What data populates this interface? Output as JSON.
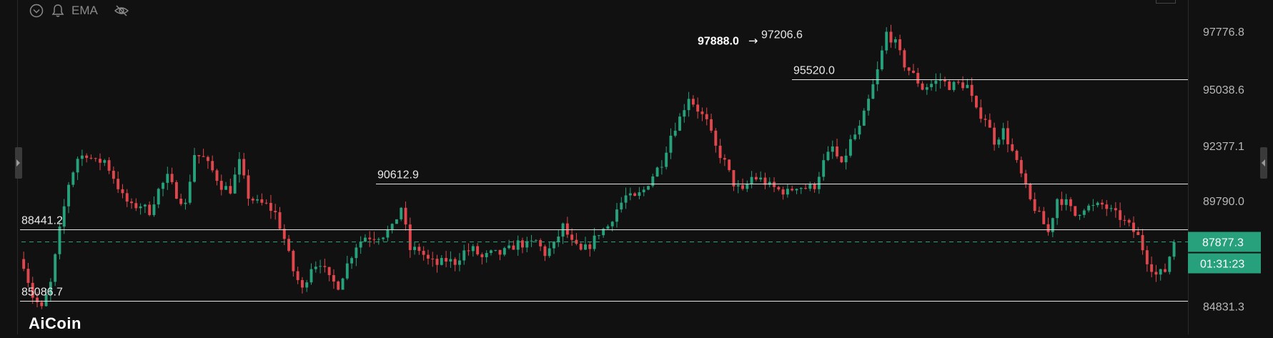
{
  "toolbar": {
    "indicator_label": "EMA",
    "icons": [
      "chevron-down-circle-icon",
      "bell-icon",
      "eye-off-icon"
    ]
  },
  "watermark": {
    "text": "AiCoin"
  },
  "colors": {
    "up": "#26a17b",
    "down": "#e0474c",
    "background": "#111111",
    "price_tag": "#26a17b",
    "level_line": "#e6e6e6"
  },
  "price_axis": {
    "ticks": [
      97776.8,
      95038.6,
      92377.1,
      89790.0,
      84831.3
    ],
    "tick_labels": [
      "97776.8",
      "95038.6",
      "92377.1",
      "89790.0",
      "84831.3"
    ]
  },
  "current_price": {
    "label": "87877.3",
    "countdown": "01:31:23"
  },
  "chart_data": {
    "type": "candlestick",
    "ylim": [
      83500,
      99250
    ],
    "levels": [
      {
        "label": "88441.2",
        "price": 88441.2
      },
      {
        "label": "85086.7",
        "price": 85086.7
      },
      {
        "label": "90612.9",
        "price": 90612.9
      },
      {
        "label": "95520.0",
        "price": 95520.0
      },
      {
        "label": "97206.6",
        "price": 97206.6
      }
    ],
    "peak_label": "97888.0",
    "current_price": 87877.3,
    "close_path": [
      [
        0,
        86800
      ],
      [
        2,
        85300
      ],
      [
        4,
        84700
      ],
      [
        6,
        85900
      ],
      [
        8,
        88400
      ],
      [
        10,
        90600
      ],
      [
        12,
        91800
      ],
      [
        14,
        92000
      ],
      [
        16,
        91600
      ],
      [
        18,
        91700
      ],
      [
        20,
        90900
      ],
      [
        22,
        90000
      ],
      [
        24,
        89500
      ],
      [
        26,
        89600
      ],
      [
        28,
        89300
      ],
      [
        30,
        90300
      ],
      [
        32,
        90900
      ],
      [
        34,
        90100
      ],
      [
        36,
        89600
      ],
      [
        38,
        92000
      ],
      [
        40,
        91800
      ],
      [
        42,
        91200
      ],
      [
        44,
        90500
      ],
      [
        46,
        90300
      ],
      [
        48,
        91600
      ],
      [
        50,
        90000
      ],
      [
        52,
        89700
      ],
      [
        54,
        89600
      ],
      [
        56,
        89200
      ],
      [
        58,
        88000
      ],
      [
        60,
        86500
      ],
      [
        62,
        85600
      ],
      [
        64,
        86700
      ],
      [
        66,
        86900
      ],
      [
        68,
        86100
      ],
      [
        70,
        85800
      ],
      [
        72,
        86800
      ],
      [
        74,
        87700
      ],
      [
        76,
        88100
      ],
      [
        78,
        88100
      ],
      [
        80,
        88200
      ],
      [
        82,
        88500
      ],
      [
        84,
        89500
      ],
      [
        86,
        87500
      ],
      [
        88,
        87500
      ],
      [
        90,
        87000
      ],
      [
        92,
        86800
      ],
      [
        94,
        87000
      ],
      [
        96,
        86900
      ],
      [
        98,
        87400
      ],
      [
        100,
        87500
      ],
      [
        102,
        87100
      ],
      [
        104,
        87300
      ],
      [
        106,
        87300
      ],
      [
        108,
        87500
      ],
      [
        110,
        87800
      ],
      [
        112,
        87700
      ],
      [
        114,
        87900
      ],
      [
        116,
        87300
      ],
      [
        118,
        87700
      ],
      [
        120,
        88600
      ],
      [
        122,
        87800
      ],
      [
        124,
        87400
      ],
      [
        126,
        87700
      ],
      [
        128,
        88300
      ],
      [
        130,
        88600
      ],
      [
        132,
        89400
      ],
      [
        134,
        90000
      ],
      [
        136,
        89900
      ],
      [
        138,
        90300
      ],
      [
        140,
        91000
      ],
      [
        142,
        91600
      ],
      [
        144,
        92900
      ],
      [
        146,
        93700
      ],
      [
        148,
        94700
      ],
      [
        150,
        94100
      ],
      [
        152,
        93500
      ],
      [
        154,
        92300
      ],
      [
        156,
        91600
      ],
      [
        158,
        90600
      ],
      [
        160,
        90200
      ],
      [
        162,
        90900
      ],
      [
        164,
        90800
      ],
      [
        166,
        90500
      ],
      [
        168,
        90300
      ],
      [
        170,
        90200
      ],
      [
        172,
        90500
      ],
      [
        174,
        90400
      ],
      [
        176,
        90500
      ],
      [
        178,
        91600
      ],
      [
        180,
        92300
      ],
      [
        182,
        91400
      ],
      [
        184,
        92600
      ],
      [
        186,
        93200
      ],
      [
        188,
        94500
      ],
      [
        190,
        95900
      ],
      [
        192,
        97700
      ],
      [
        194,
        97200
      ],
      [
        196,
        96200
      ],
      [
        198,
        95700
      ],
      [
        200,
        95100
      ],
      [
        202,
        95300
      ],
      [
        204,
        95500
      ],
      [
        206,
        95200
      ],
      [
        208,
        95300
      ],
      [
        210,
        95200
      ],
      [
        212,
        94000
      ],
      [
        214,
        93700
      ],
      [
        216,
        92600
      ],
      [
        218,
        93100
      ],
      [
        220,
        92100
      ],
      [
        222,
        91000
      ],
      [
        224,
        89800
      ],
      [
        226,
        89100
      ],
      [
        228,
        88300
      ],
      [
        230,
        89900
      ],
      [
        232,
        89700
      ],
      [
        234,
        89100
      ],
      [
        236,
        89500
      ],
      [
        238,
        89500
      ],
      [
        240,
        89600
      ],
      [
        242,
        89300
      ],
      [
        244,
        89000
      ],
      [
        246,
        88600
      ],
      [
        248,
        88100
      ],
      [
        250,
        87000
      ],
      [
        252,
        86300
      ],
      [
        254,
        86500
      ],
      [
        256,
        87900
      ]
    ]
  }
}
